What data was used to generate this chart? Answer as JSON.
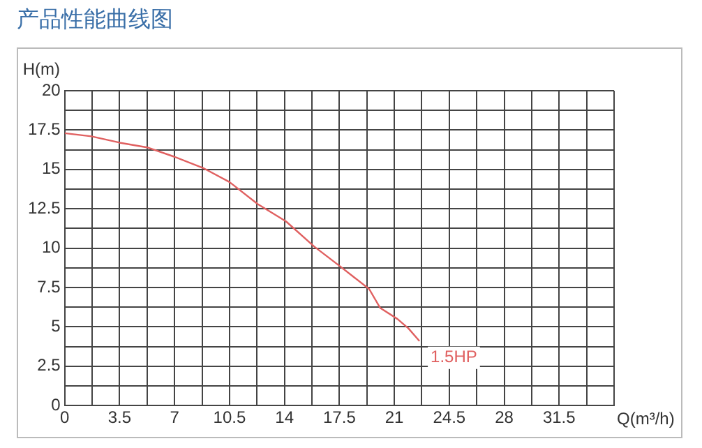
{
  "chart_data": {
    "type": "line",
    "title": "产品性能曲线图",
    "xlabel": "Q(m³/h)",
    "ylabel": "H(m)",
    "xlim": [
      0,
      35
    ],
    "ylim": [
      0,
      20
    ],
    "xticks": [
      0,
      {
        "value": 1.75,
        "label": null
      },
      3.5,
      {
        "value": 5.25,
        "label": null
      },
      7,
      {
        "value": 8.75,
        "label": null
      },
      10.5,
      {
        "value": 12.25,
        "label": null
      },
      14,
      {
        "value": 15.75,
        "label": null
      },
      17.5,
      {
        "value": 19.25,
        "label": null
      },
      21,
      {
        "value": 22.75,
        "label": null
      },
      24.5,
      {
        "value": 26.25,
        "label": null
      },
      28,
      {
        "value": 29.75,
        "label": null
      },
      31.5,
      {
        "value": 33.25,
        "label": null
      },
      {
        "value": 35,
        "label": null
      }
    ],
    "yticks": [
      0,
      {
        "value": 1.25,
        "label": null
      },
      2.5,
      {
        "value": 3.75,
        "label": null
      },
      5,
      {
        "value": 6.25,
        "label": null
      },
      7.5,
      {
        "value": 8.75,
        "label": null
      },
      10,
      {
        "value": 11.25,
        "label": null
      },
      12.5,
      {
        "value": 13.75,
        "label": null
      },
      15,
      {
        "value": 16.25,
        "label": null
      },
      17.5,
      {
        "value": 18.75,
        "label": null
      },
      20
    ],
    "grid": true,
    "marker": "none",
    "line_style": "solid",
    "series": [
      {
        "name": "1.5HP",
        "color": "#e06060",
        "x": [
          0,
          1.7,
          3.5,
          5.25,
          7,
          8.8,
          10.5,
          12.3,
          14.1,
          15.9,
          17.6,
          19.4,
          20.1,
          21.2,
          21.9,
          22.6
        ],
        "values": [
          17.3,
          17.1,
          16.7,
          16.4,
          15.8,
          15.1,
          14.2,
          12.8,
          11.7,
          10.1,
          8.8,
          7.4,
          6.2,
          5.5,
          4.9,
          4.1
        ]
      }
    ]
  }
}
